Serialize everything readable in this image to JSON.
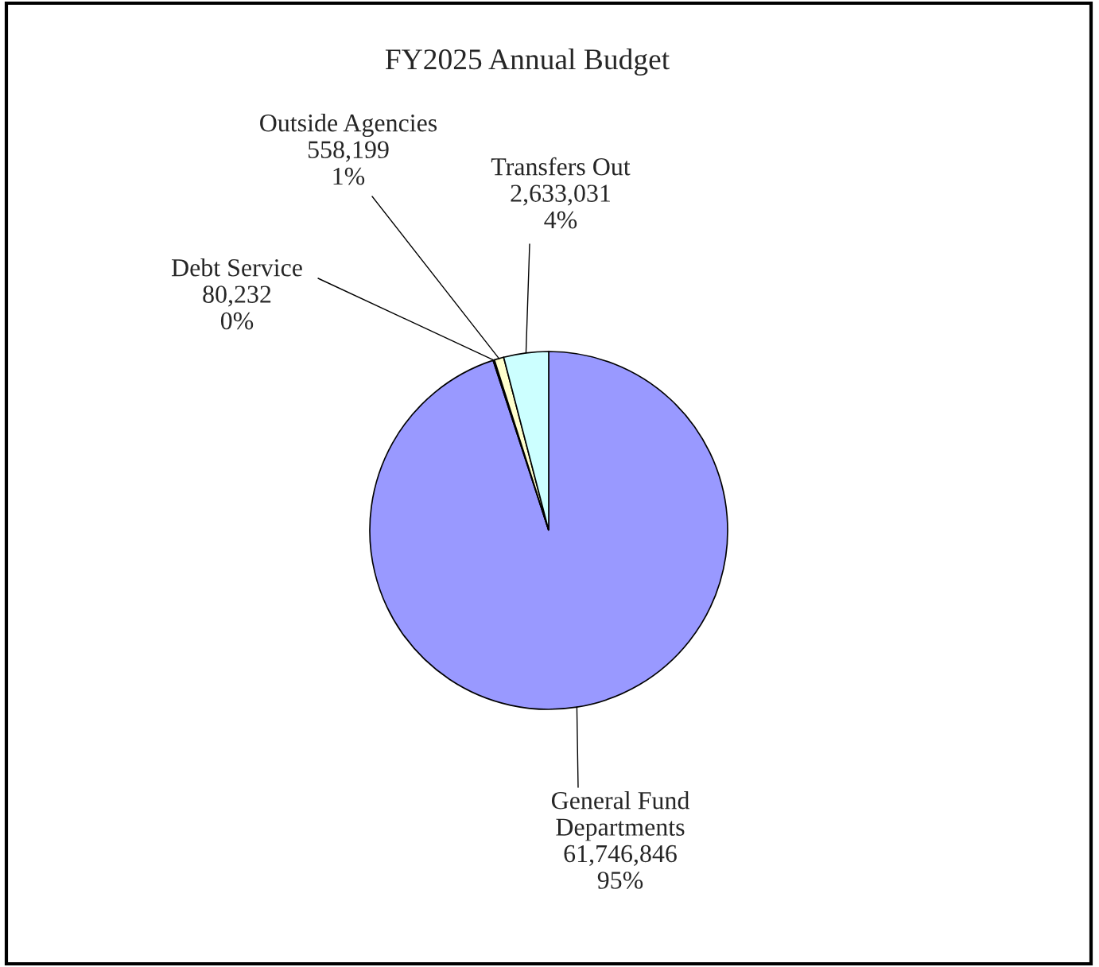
{
  "chart_data": {
    "type": "pie",
    "title": "FY2025 Annual Budget",
    "categories": [
      "General Fund\nDepartments",
      "Debt Service",
      "Outside Agencies",
      "Transfers Out"
    ],
    "values": [
      61746846,
      80232,
      558199,
      2633031
    ],
    "colors": [
      "#9999ff",
      "#333399",
      "#ffffcc",
      "#ccffff"
    ],
    "value_labels": [
      "61,746,846\n95%",
      "80,232\n0%",
      "558,199\n1%",
      "2,633,031\n4%"
    ],
    "legend": false
  }
}
